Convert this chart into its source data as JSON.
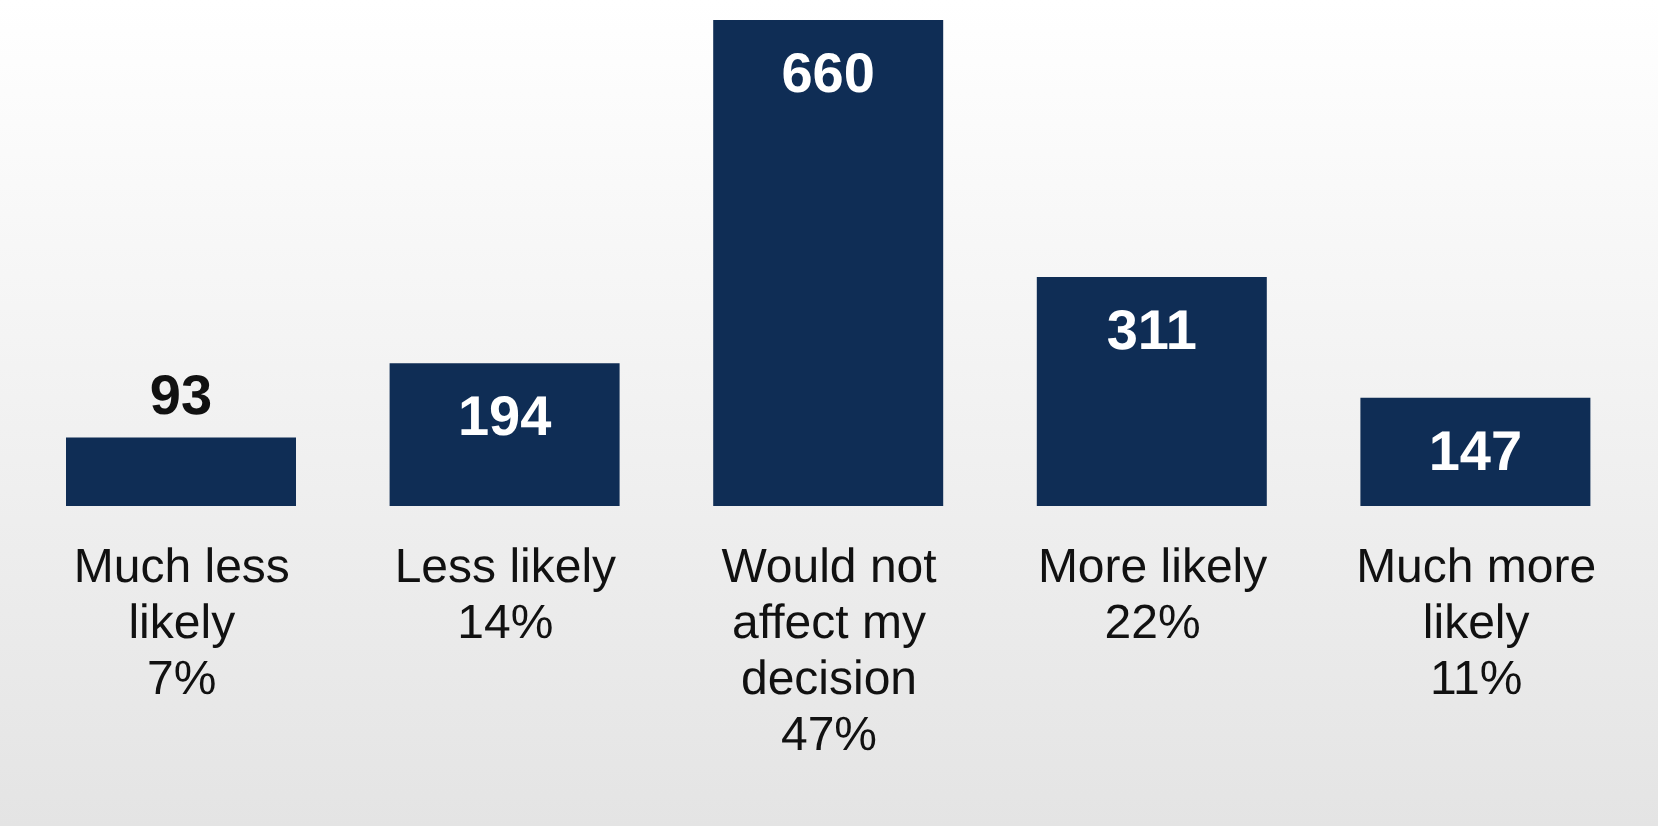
{
  "chart_data": {
    "type": "bar",
    "categories": [
      "Much less\nlikely\n7%",
      "Less likely\n14%",
      "Would not\naffect my\ndecision\n47%",
      "More likely\n22%",
      "Much more\nlikely\n11%"
    ],
    "values": [
      93,
      194,
      660,
      311,
      147
    ],
    "color": "#0f2d55",
    "data_labels": true,
    "grid": false,
    "legend": false
  }
}
